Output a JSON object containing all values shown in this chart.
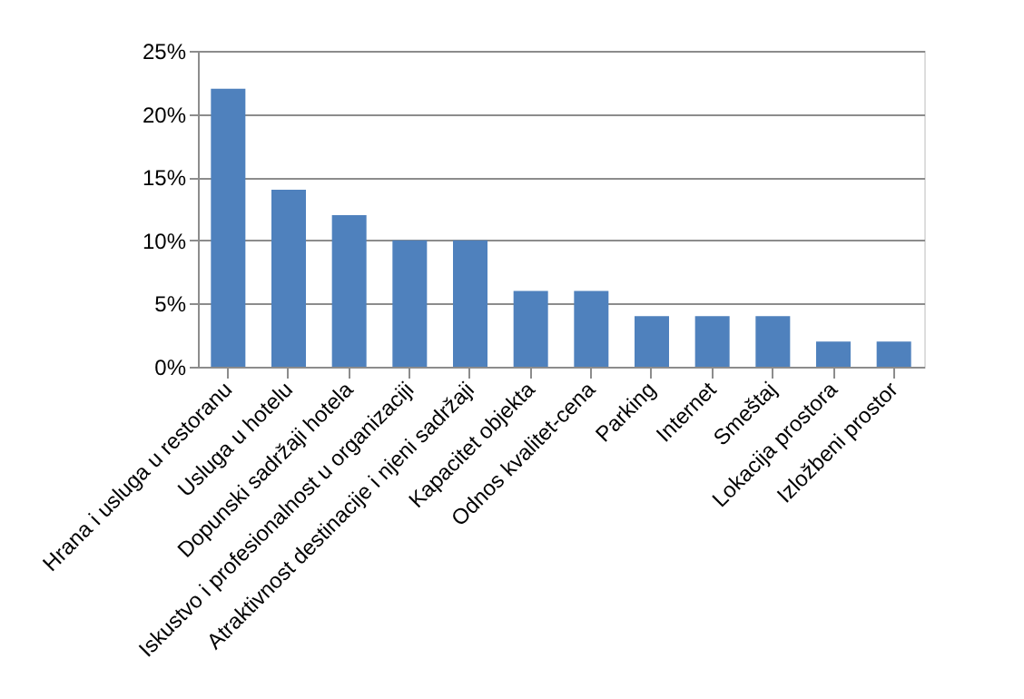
{
  "chart_data": {
    "type": "bar",
    "categories": [
      "Hrana i usluga u restoranu",
      "Usluga u hotelu",
      "Dopunski sadržaji hotela",
      "Iskustvo i profesionalnost u organizaciji",
      "Atraktivnost destinacije i njeni sadržaji",
      "Kapacitet objekta",
      "Odnos kvalitet-cena",
      "Parking",
      "Internet",
      "Smeštaj",
      "Lokacija prostora",
      "Izložbeni prostor"
    ],
    "values": [
      22,
      14,
      12,
      10,
      10,
      6,
      6,
      4,
      4,
      4,
      2,
      2
    ],
    "color": "#4f81bd",
    "ylim": [
      0,
      25
    ],
    "yticks": [
      {
        "value": 0,
        "label": "0%"
      },
      {
        "value": 5,
        "label": "5%"
      },
      {
        "value": 10,
        "label": "10%"
      },
      {
        "value": 15,
        "label": "15%"
      },
      {
        "value": 20,
        "label": "20%"
      },
      {
        "value": 25,
        "label": "25%"
      }
    ],
    "grid": "y"
  }
}
